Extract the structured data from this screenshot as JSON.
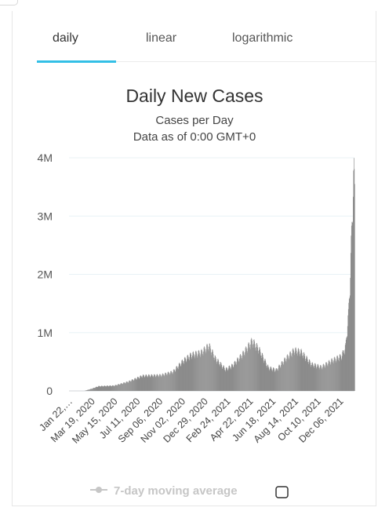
{
  "tabs": [
    {
      "label": "daily",
      "active": true
    },
    {
      "label": "linear",
      "active": false
    },
    {
      "label": "logarithmic",
      "active": false
    }
  ],
  "colors": {
    "accent": "#33bfe6",
    "bar": "#8c8c8c",
    "grid": "#e8f2f6",
    "legend_disabled": "#c6c6c6"
  },
  "legend": {
    "label": "7-day moving average",
    "icon": "line-with-dot-icon",
    "checkbox_checked": false
  },
  "chart_data": {
    "type": "bar",
    "title": "Daily New Cases",
    "subtitle": "Cases per Day",
    "subtitle2": "Data as of 0:00 GMT+0",
    "xlabel": "",
    "ylabel": "",
    "ylim": [
      0,
      4000000
    ],
    "y_ticks": [
      0,
      1000000,
      2000000,
      3000000,
      4000000
    ],
    "y_tick_labels": [
      "0",
      "1M",
      "2M",
      "3M",
      "4M"
    ],
    "x_tick_labels": [
      "Jan 22,…",
      "Mar 19, 2020",
      "May 15, 2020",
      "Jul 11, 2020",
      "Sep 06, 2020",
      "Nov 02, 2020",
      "Dec 29, 2020",
      "Feb 24, 2021",
      "Apr 22, 2021",
      "Jun 18, 2021",
      "Aug 14, 2021",
      "Oct 10, 2021",
      "Dec 06, 2021"
    ],
    "grid": true,
    "legend_position": "bottom",
    "x_range": [
      "2020-01-22",
      "2022-01-12"
    ],
    "key_points": [
      [
        "2020-01-22",
        0
      ],
      [
        "2020-03-01",
        2000
      ],
      [
        "2020-03-20",
        40000
      ],
      [
        "2020-04-05",
        80000
      ],
      [
        "2020-05-15",
        90000
      ],
      [
        "2020-06-20",
        160000
      ],
      [
        "2020-07-25",
        260000
      ],
      [
        "2020-09-10",
        270000
      ],
      [
        "2020-10-10",
        330000
      ],
      [
        "2020-11-05",
        520000
      ],
      [
        "2020-11-25",
        620000
      ],
      [
        "2020-12-20",
        660000
      ],
      [
        "2021-01-09",
        780000
      ],
      [
        "2021-01-25",
        560000
      ],
      [
        "2021-02-20",
        370000
      ],
      [
        "2021-03-10",
        440000
      ],
      [
        "2021-04-05",
        640000
      ],
      [
        "2021-04-28",
        860000
      ],
      [
        "2021-05-15",
        720000
      ],
      [
        "2021-06-08",
        400000
      ],
      [
        "2021-06-28",
        360000
      ],
      [
        "2021-07-20",
        540000
      ],
      [
        "2021-08-12",
        700000
      ],
      [
        "2021-08-30",
        670000
      ],
      [
        "2021-09-25",
        460000
      ],
      [
        "2021-10-20",
        410000
      ],
      [
        "2021-11-15",
        520000
      ],
      [
        "2021-12-10",
        600000
      ],
      [
        "2021-12-20",
        760000
      ],
      [
        "2021-12-27",
        1300000
      ],
      [
        "2022-01-01",
        2000000
      ],
      [
        "2022-01-04",
        2700000
      ],
      [
        "2022-01-07",
        3300000
      ],
      [
        "2022-01-10",
        3700000
      ],
      [
        "2022-01-12",
        3550000
      ]
    ]
  }
}
